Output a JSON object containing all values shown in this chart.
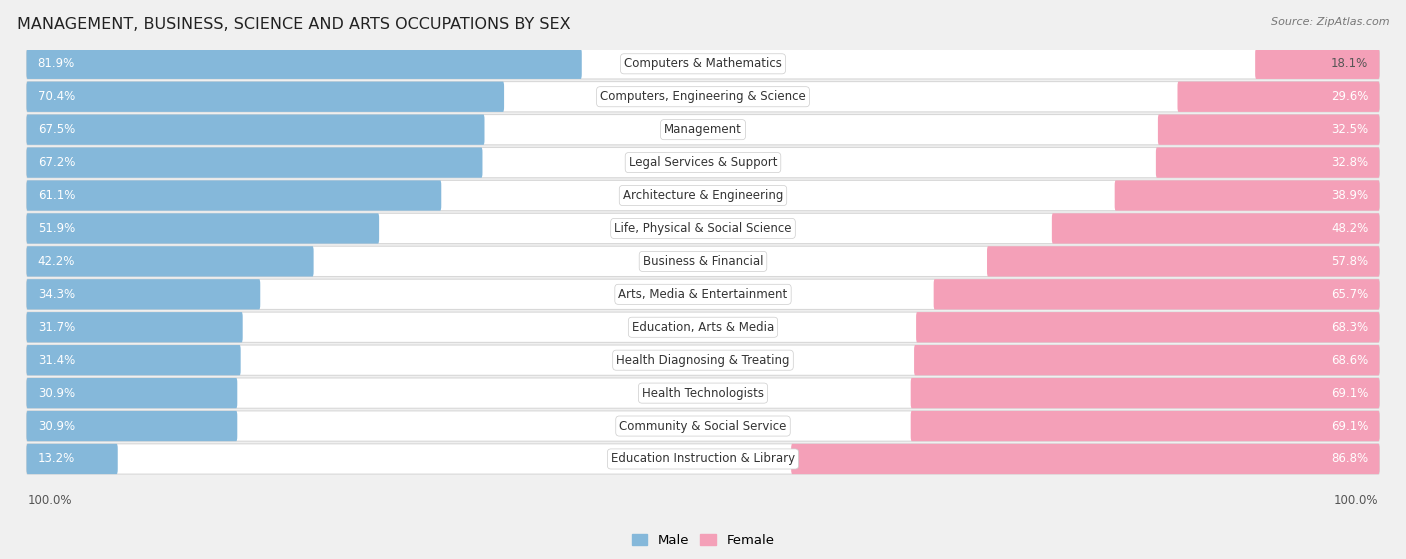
{
  "title": "MANAGEMENT, BUSINESS, SCIENCE AND ARTS OCCUPATIONS BY SEX",
  "source": "Source: ZipAtlas.com",
  "categories": [
    "Computers & Mathematics",
    "Computers, Engineering & Science",
    "Management",
    "Legal Services & Support",
    "Architecture & Engineering",
    "Life, Physical & Social Science",
    "Business & Financial",
    "Arts, Media & Entertainment",
    "Education, Arts & Media",
    "Health Diagnosing & Treating",
    "Health Technologists",
    "Community & Social Service",
    "Education Instruction & Library"
  ],
  "male_pct": [
    81.9,
    70.4,
    67.5,
    67.2,
    61.1,
    51.9,
    42.2,
    34.3,
    31.7,
    31.4,
    30.9,
    30.9,
    13.2
  ],
  "female_pct": [
    18.1,
    29.6,
    32.5,
    32.8,
    38.9,
    48.2,
    57.8,
    65.7,
    68.3,
    68.6,
    69.1,
    69.1,
    86.8
  ],
  "male_color": "#85b8da",
  "female_color": "#f4a0b8",
  "row_bg_color": "#e8e8e8",
  "bar_row_bg": "#f5f5f5",
  "fig_bg_color": "#f0f0f0",
  "title_fontsize": 11.5,
  "label_fontsize": 8.5,
  "value_fontsize": 8.5,
  "legend_fontsize": 9.5
}
